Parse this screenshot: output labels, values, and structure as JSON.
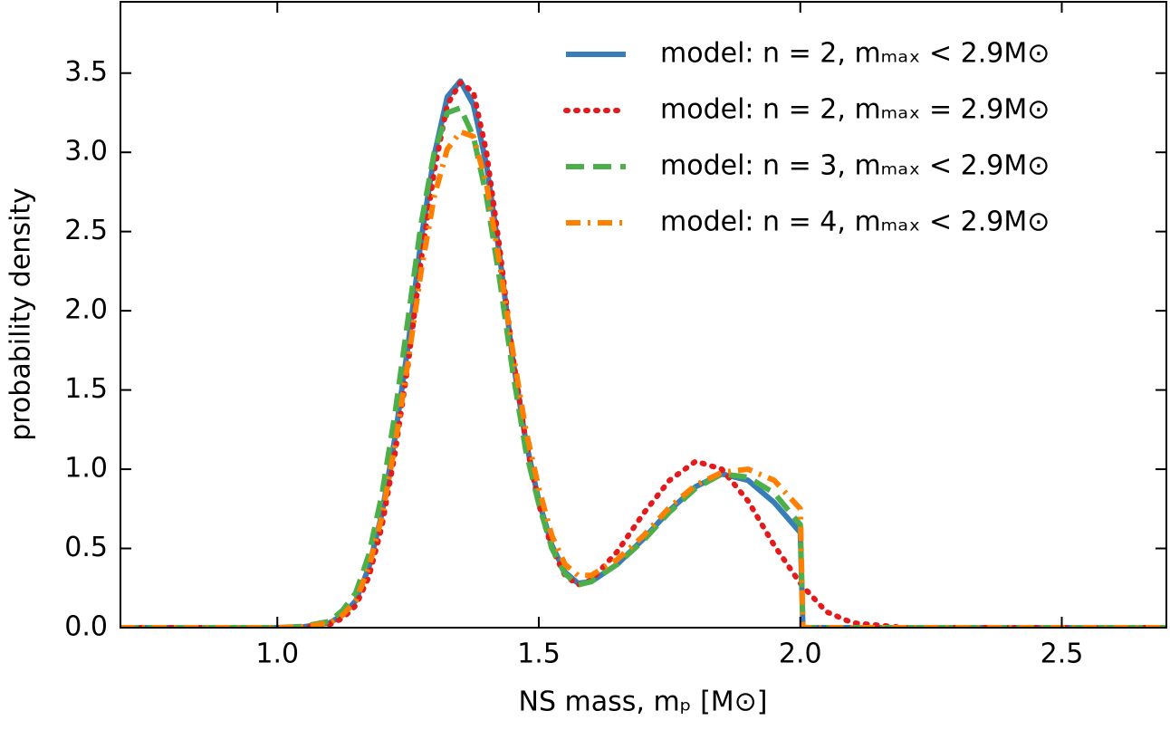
{
  "chart_data": {
    "type": "line",
    "xlabel": "NS mass, mₚ [M⊙]",
    "ylabel": "probability density",
    "xlim": [
      0.7,
      2.7
    ],
    "ylim": [
      0,
      3.95
    ],
    "xticks": [
      {
        "value": 1,
        "label": "1.0"
      },
      1.5,
      {
        "value": 2,
        "label": "2.0"
      },
      2.5
    ],
    "yticks": [
      {
        "value": 0,
        "label": "0.0"
      },
      0.5,
      {
        "value": 1,
        "label": "1.0"
      },
      1.5,
      {
        "value": 2,
        "label": "2.0"
      },
      2.5,
      {
        "value": 3,
        "label": "3.0"
      },
      3.5
    ],
    "legend": "upper right",
    "x": [
      0.7,
      0.9,
      1.0,
      1.05,
      1.1,
      1.125,
      1.15,
      1.175,
      1.2,
      1.225,
      1.25,
      1.275,
      1.3,
      1.325,
      1.35,
      1.375,
      1.4,
      1.425,
      1.45,
      1.475,
      1.5,
      1.525,
      1.55,
      1.575,
      1.6,
      1.65,
      1.7,
      1.75,
      1.8,
      1.85,
      1.9,
      1.95,
      2.0,
      2.005,
      2.05,
      2.1,
      2.2,
      2.4,
      2.7
    ],
    "series": [
      {
        "name": "model: n = 2,  mₘₐₓ < 2.9M⊙",
        "color": "#377eb8",
        "linestyle": "solid",
        "values": [
          0,
          0,
          0,
          0.005,
          0.03,
          0.08,
          0.17,
          0.38,
          0.72,
          1.2,
          1.78,
          2.45,
          2.98,
          3.35,
          3.45,
          3.3,
          2.92,
          2.35,
          1.7,
          1.18,
          0.8,
          0.52,
          0.35,
          0.28,
          0.29,
          0.4,
          0.56,
          0.74,
          0.89,
          0.97,
          0.93,
          0.79,
          0.6,
          0,
          0,
          0,
          0,
          0,
          0
        ]
      },
      {
        "name": "model: n = 2,  mₘₐₓ = 2.9M⊙",
        "color": "#e41a1c",
        "linestyle": "dotted",
        "values": [
          0,
          0,
          0,
          0.003,
          0.02,
          0.06,
          0.14,
          0.32,
          0.64,
          1.1,
          1.66,
          2.32,
          2.88,
          3.3,
          3.44,
          3.38,
          3.0,
          2.4,
          1.72,
          1.18,
          0.78,
          0.5,
          0.33,
          0.27,
          0.3,
          0.48,
          0.72,
          0.93,
          1.05,
          1.0,
          0.8,
          0.52,
          0.28,
          0.26,
          0.1,
          0.03,
          0,
          0,
          0
        ]
      },
      {
        "name": "model: n = 3,  mₘₐₓ < 2.9M⊙",
        "color": "#4daf4a",
        "linestyle": "dashed",
        "values": [
          0,
          0,
          0,
          0.008,
          0.04,
          0.11,
          0.22,
          0.46,
          0.84,
          1.35,
          1.95,
          2.55,
          3.0,
          3.25,
          3.28,
          3.1,
          2.72,
          2.2,
          1.62,
          1.12,
          0.78,
          0.5,
          0.34,
          0.27,
          0.29,
          0.4,
          0.55,
          0.73,
          0.88,
          0.97,
          0.95,
          0.85,
          0.65,
          0,
          0,
          0,
          0,
          0,
          0
        ]
      },
      {
        "name": "model: n = 4,  mₘₐₓ < 2.9M⊙",
        "color": "#ff7f00",
        "linestyle": "dashdot",
        "values": [
          0,
          0,
          0,
          0.005,
          0.03,
          0.08,
          0.17,
          0.38,
          0.7,
          1.15,
          1.68,
          2.25,
          2.72,
          3.02,
          3.13,
          3.1,
          2.8,
          2.3,
          1.75,
          1.25,
          0.88,
          0.58,
          0.4,
          0.33,
          0.33,
          0.43,
          0.58,
          0.76,
          0.9,
          0.98,
          1.0,
          0.93,
          0.75,
          0,
          0,
          0,
          0,
          0,
          0
        ]
      }
    ]
  }
}
